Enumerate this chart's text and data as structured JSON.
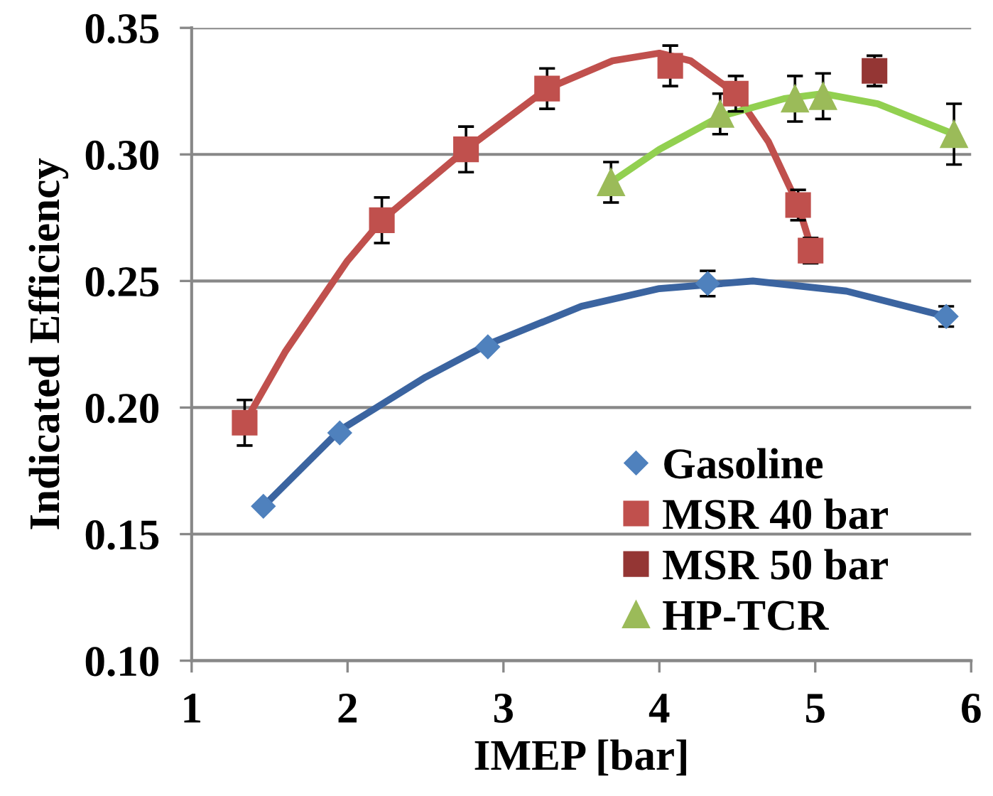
{
  "chart_data": {
    "type": "scatter",
    "xlabel": "IMEP [bar]",
    "ylabel": "Indicated Efficiency",
    "xlim": [
      1,
      6
    ],
    "xticks": [
      1,
      2,
      3,
      4,
      5,
      6
    ],
    "ylim": [
      0.1,
      0.35
    ],
    "yticks": [
      {
        "value": 0.1,
        "label": "0.10"
      },
      {
        "value": 0.15,
        "label": "0.15"
      },
      {
        "value": 0.2,
        "label": "0.20"
      },
      {
        "value": 0.25,
        "label": "0.25"
      },
      {
        "value": 0.3,
        "label": "0.30"
      },
      {
        "value": 0.35,
        "label": "0.35"
      }
    ],
    "grid": "y",
    "legend": "bottom right",
    "series": [
      {
        "type": "line",
        "color": "#3b64a0",
        "x": [
          1.46,
          1.95,
          2.5,
          2.9,
          3.5,
          4.0,
          4.6,
          5.2,
          5.84
        ],
        "values": [
          0.161,
          0.191,
          0.212,
          0.225,
          0.24,
          0.247,
          0.25,
          0.246,
          0.236
        ]
      },
      {
        "type": "line",
        "color": "#c0504d",
        "x": [
          1.34,
          1.6,
          2.0,
          2.22,
          2.76,
          3.28,
          3.7,
          4.0,
          4.2,
          4.49,
          4.7,
          4.89,
          4.97
        ],
        "values": [
          0.194,
          0.222,
          0.258,
          0.274,
          0.302,
          0.326,
          0.337,
          0.34,
          0.337,
          0.324,
          0.305,
          0.28,
          0.264
        ]
      },
      {
        "type": "line",
        "color": "#92d050",
        "x": [
          3.69,
          4.0,
          4.39,
          4.8,
          5.05,
          5.4,
          5.89
        ],
        "values": [
          0.289,
          0.302,
          0.315,
          0.322,
          0.324,
          0.32,
          0.308
        ]
      },
      {
        "name": "Gasoline",
        "color": "#4f81bd",
        "marker": "diamond",
        "x": [
          1.46,
          1.95,
          2.9,
          4.31,
          5.84
        ],
        "values": [
          0.161,
          0.19,
          0.224,
          0.249,
          0.236
        ],
        "errors": [
          null,
          null,
          null,
          0.005,
          0.004
        ]
      },
      {
        "name": "MSR 40 bar",
        "color": "#c0504d",
        "marker": "square",
        "x": [
          1.34,
          2.22,
          2.76,
          3.28,
          4.07,
          4.49,
          4.89,
          4.97
        ],
        "values": [
          0.194,
          0.274,
          0.302,
          0.326,
          0.335,
          0.324,
          0.28,
          0.262
        ],
        "errors": [
          0.009,
          0.009,
          0.009,
          0.008,
          0.008,
          0.007,
          0.006,
          0.005
        ]
      },
      {
        "name": "MSR 50 bar",
        "color": "#943634",
        "marker": "square",
        "x": [
          5.38
        ],
        "values": [
          0.333
        ],
        "errors": [
          0.006
        ]
      },
      {
        "name": "HP-TCR",
        "color": "#9bbb59",
        "marker": "triangle",
        "x": [
          3.69,
          4.39,
          4.87,
          5.05,
          5.89
        ],
        "values": [
          0.289,
          0.316,
          0.322,
          0.323,
          0.308
        ],
        "errors": [
          0.008,
          0.008,
          0.009,
          0.009,
          0.012
        ]
      }
    ]
  }
}
